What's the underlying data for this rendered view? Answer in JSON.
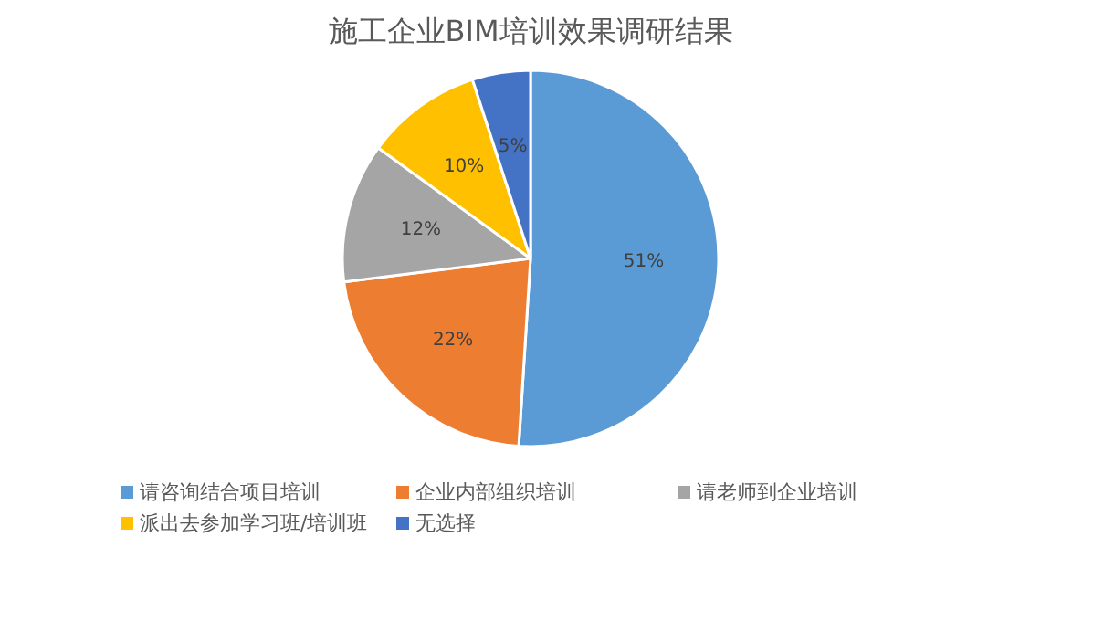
{
  "chart_data": {
    "type": "pie",
    "title": "施工企业BIM培训效果调研结果",
    "categories": [
      "请咨询结合项目培训",
      "企业内部组织培训",
      "请老师到企业培训",
      "派出去参加学习班/培训班",
      "无选择"
    ],
    "values": [
      51,
      22,
      12,
      10,
      5
    ],
    "colors": [
      "#5b9bd5",
      "#ed7d31",
      "#a5a5a5",
      "#ffc000",
      "#4472c4"
    ],
    "value_labels": [
      "51%",
      "22%",
      "12%",
      "10%",
      "5%"
    ],
    "legend": "bottom"
  }
}
